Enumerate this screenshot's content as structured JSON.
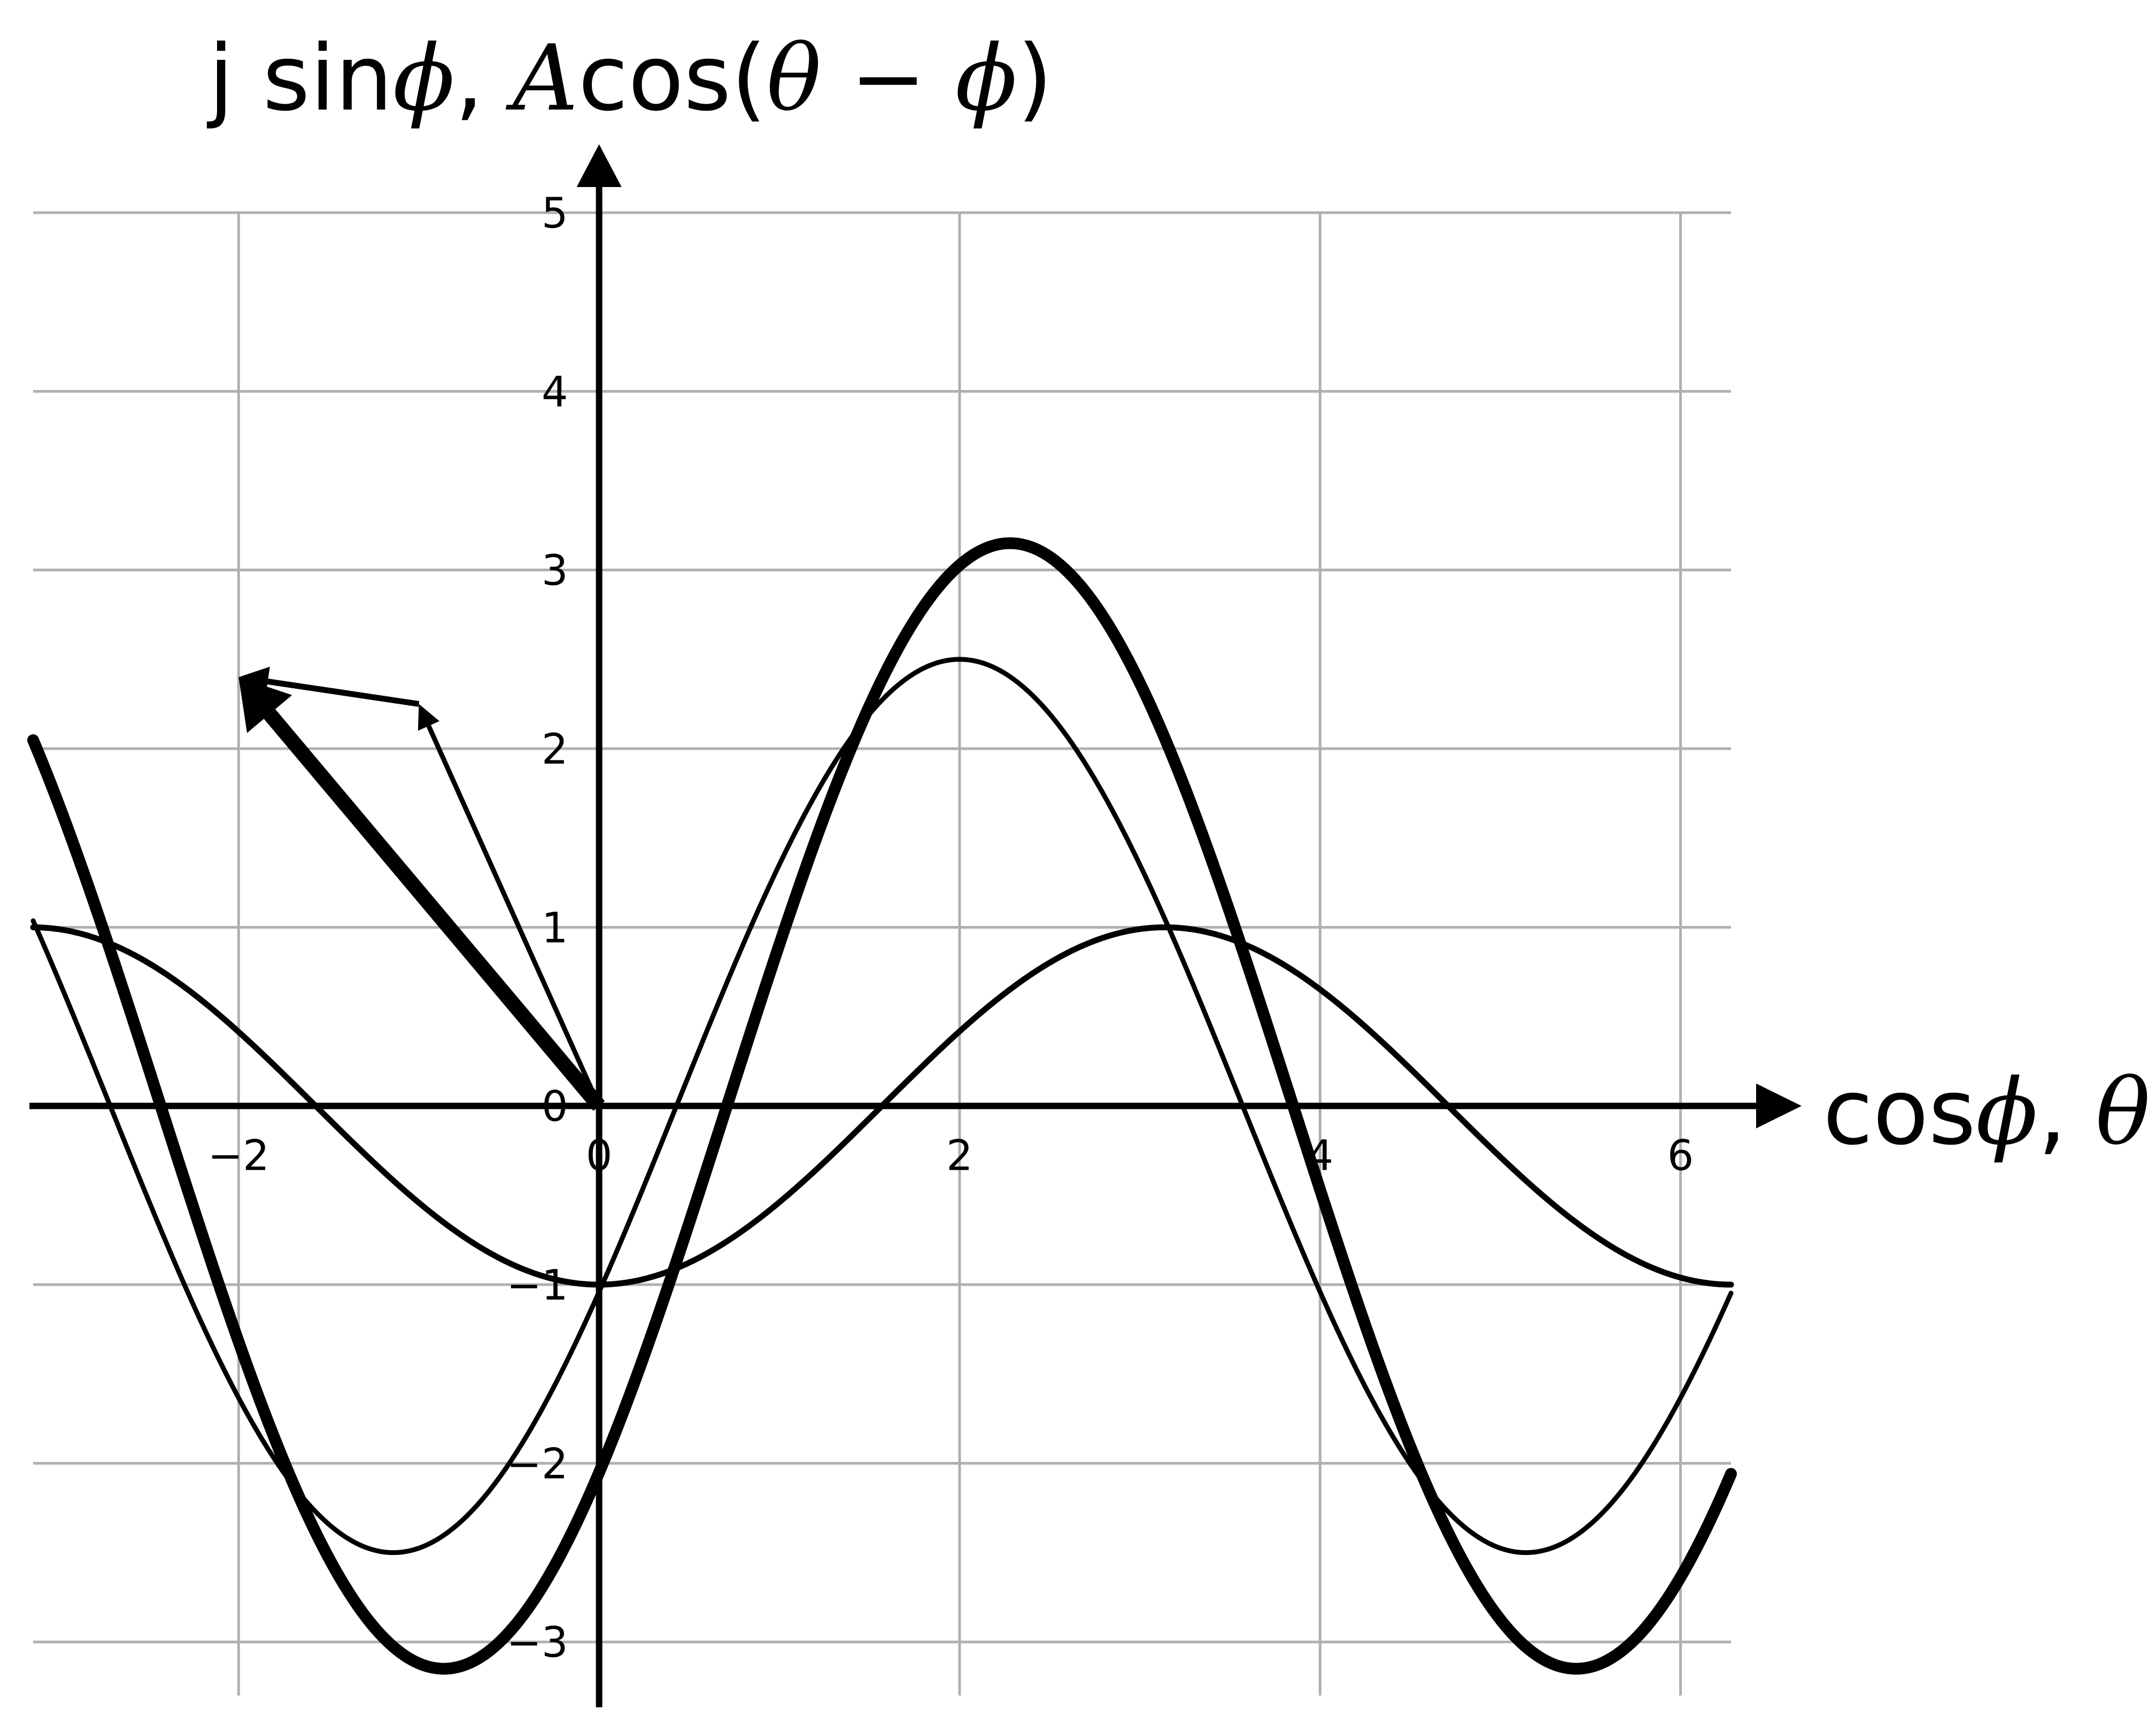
{
  "chart_data": {
    "type": "line",
    "title": "",
    "xlabel_parts": [
      "cos",
      "ϕ",
      ", ",
      "θ"
    ],
    "ylabel_parts": [
      "j sin",
      "ϕ",
      ", ",
      "A",
      "cos(",
      "θ",
      " − ",
      "ϕ",
      ")"
    ],
    "xlim": [
      -3.14,
      6.28
    ],
    "ylim": [
      -3.3,
      5.0
    ],
    "xticks": [
      -2,
      0,
      2,
      4,
      6
    ],
    "xtick_labels": [
      "−2",
      "0",
      "2",
      "4",
      "6"
    ],
    "yticks": [
      -3,
      -2,
      -1,
      0,
      1,
      2,
      3,
      4,
      5
    ],
    "ytick_labels": [
      "−3",
      "−2",
      "−1",
      "0",
      "1",
      "2",
      "3",
      "4",
      "5"
    ],
    "grid": true,
    "series": [
      {
        "formula": "A*cos(theta - phi)",
        "amplitude": 1.0,
        "phase": 3.14,
        "style": "medium"
      },
      {
        "formula": "A*cos(theta - phi)",
        "amplitude": 2.5,
        "phase": 2.0,
        "style": "thin"
      },
      {
        "formula": "A*cos(theta - phi)",
        "amplitude": 3.15,
        "phase": 2.28,
        "style": "thick"
      }
    ],
    "phasors": [
      {
        "from": [
          0,
          0
        ],
        "to": [
          -1.0,
          2.25
        ],
        "style": "thin"
      },
      {
        "from": [
          -1.0,
          2.25
        ],
        "to": [
          -2.0,
          2.4
        ],
        "style": "medium"
      },
      {
        "from": [
          0,
          0
        ],
        "to": [
          -2.0,
          2.4
        ],
        "style": "thick"
      }
    ]
  }
}
